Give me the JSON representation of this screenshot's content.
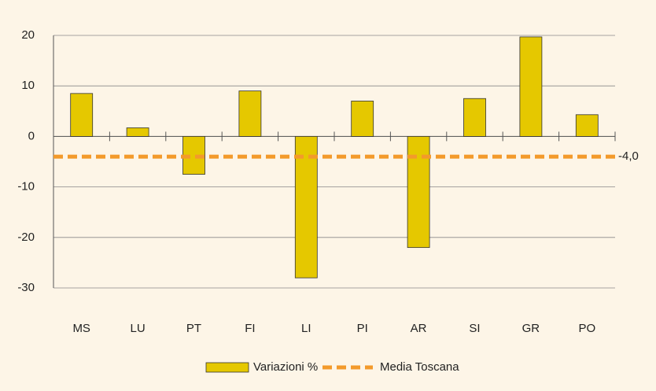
{
  "chart_data": {
    "type": "bar",
    "categories": [
      "MS",
      "LU",
      "PT",
      "FI",
      "LI",
      "PI",
      "AR",
      "SI",
      "GR",
      "PO"
    ],
    "series": [
      {
        "name": "Variazioni %",
        "color": "#e5c800",
        "values": [
          8.5,
          1.7,
          -7.5,
          9,
          -28,
          7,
          -22,
          7.5,
          19.7,
          4.3
        ]
      }
    ],
    "reference_line": {
      "name": "Media Toscana",
      "color": "#f39a2b",
      "value": -4,
      "label": "-4,0"
    },
    "ylim": [
      -30,
      20
    ],
    "yticks": [
      -30,
      -20,
      -10,
      0,
      10,
      20
    ],
    "grid": true
  }
}
